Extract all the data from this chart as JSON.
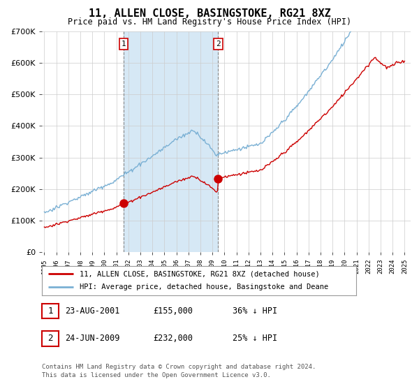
{
  "title": "11, ALLEN CLOSE, BASINGSTOKE, RG21 8XZ",
  "subtitle": "Price paid vs. HM Land Registry's House Price Index (HPI)",
  "legend_line1": "11, ALLEN CLOSE, BASINGSTOKE, RG21 8XZ (detached house)",
  "legend_line2": "HPI: Average price, detached house, Basingstoke and Deane",
  "sale1_label": "1",
  "sale1_date": "23-AUG-2001",
  "sale1_price": "£155,000",
  "sale1_hpi": "36% ↓ HPI",
  "sale1_year": 2001.62,
  "sale1_value": 155000,
  "sale2_label": "2",
  "sale2_date": "24-JUN-2009",
  "sale2_price": "£232,000",
  "sale2_hpi": "25% ↓ HPI",
  "sale2_year": 2009.48,
  "sale2_value": 232000,
  "footnote1": "Contains HM Land Registry data © Crown copyright and database right 2024.",
  "footnote2": "This data is licensed under the Open Government Licence v3.0.",
  "hpi_color": "#7ab0d4",
  "price_color": "#cc0000",
  "marker_color": "#cc0000",
  "shading_color": "#d6e8f5",
  "ylim": [
    0,
    700000
  ],
  "yticks": [
    0,
    100000,
    200000,
    300000,
    400000,
    500000,
    600000,
    700000
  ],
  "background_color": "#ffffff",
  "grid_color": "#cccccc"
}
